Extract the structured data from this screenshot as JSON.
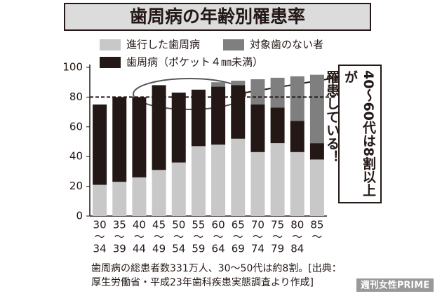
{
  "chart_data": {
    "type": "stacked-bar",
    "title": "歯周病の年齢別罹患率",
    "categories": [
      [
        "30",
        "〜",
        "34"
      ],
      [
        "35",
        "〜",
        "39"
      ],
      [
        "40",
        "〜",
        "44"
      ],
      [
        "45",
        "〜",
        "49"
      ],
      [
        "50",
        "〜",
        "54"
      ],
      [
        "55",
        "〜",
        "59"
      ],
      [
        "60",
        "〜",
        "64"
      ],
      [
        "65",
        "〜",
        "69"
      ],
      [
        "70",
        "〜",
        "74"
      ],
      [
        "75",
        "〜",
        "79"
      ],
      [
        "80",
        "〜",
        "84"
      ],
      [
        "85",
        "〜"
      ]
    ],
    "series": [
      {
        "name": "進行した歯周病",
        "color": "#c8c8c8",
        "values": [
          21,
          23,
          26,
          31,
          36,
          47,
          48,
          52,
          43,
          49,
          43,
          38
        ]
      },
      {
        "name": "歯周病（ポケット４㎜未満）",
        "color": "#231815",
        "values": [
          54,
          57,
          54,
          57,
          47,
          38,
          39,
          36,
          32,
          24,
          21,
          11
        ]
      },
      {
        "name": "対象歯のない者",
        "color": "#7f7f7f",
        "values": [
          0,
          0,
          0,
          0,
          0,
          0,
          3,
          3,
          17,
          20,
          30,
          46
        ]
      }
    ],
    "ylim": [
      0,
      100
    ],
    "yticks": [
      0,
      20,
      40,
      60,
      80,
      100
    ],
    "reference_line": 80,
    "annotation": [
      "40～60代は8割以上が",
      "罹患している！"
    ],
    "footnote": [
      "歯周病の総患者数331万人、30～50代は約8割。[出典：",
      "厚生労働省・平成23年歯科疾患実態調査より作成]"
    ],
    "watermark": "週刊女性PRIME"
  }
}
